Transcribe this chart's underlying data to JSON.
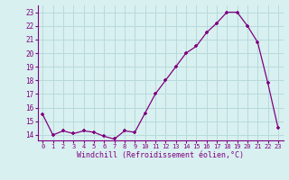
{
  "x": [
    0,
    1,
    2,
    3,
    4,
    5,
    6,
    7,
    8,
    9,
    10,
    11,
    12,
    13,
    14,
    15,
    16,
    17,
    18,
    19,
    20,
    21,
    22,
    23
  ],
  "y": [
    15.5,
    14.0,
    14.3,
    14.1,
    14.3,
    14.2,
    13.9,
    13.7,
    14.3,
    14.2,
    15.6,
    17.0,
    18.0,
    19.0,
    20.0,
    20.5,
    21.5,
    22.2,
    23.0,
    23.0,
    22.0,
    20.8,
    17.8,
    14.5
  ],
  "line_color": "#800080",
  "marker": "+",
  "bg_color": "#d8f0f0",
  "grid_color": "#b8dada",
  "xlabel": "Windchill (Refroidissement éolien,°C)",
  "ylabel_ticks": [
    14,
    15,
    16,
    17,
    18,
    19,
    20,
    21,
    22,
    23
  ],
  "xlim": [
    -0.5,
    23.5
  ],
  "ylim": [
    13.6,
    23.5
  ]
}
